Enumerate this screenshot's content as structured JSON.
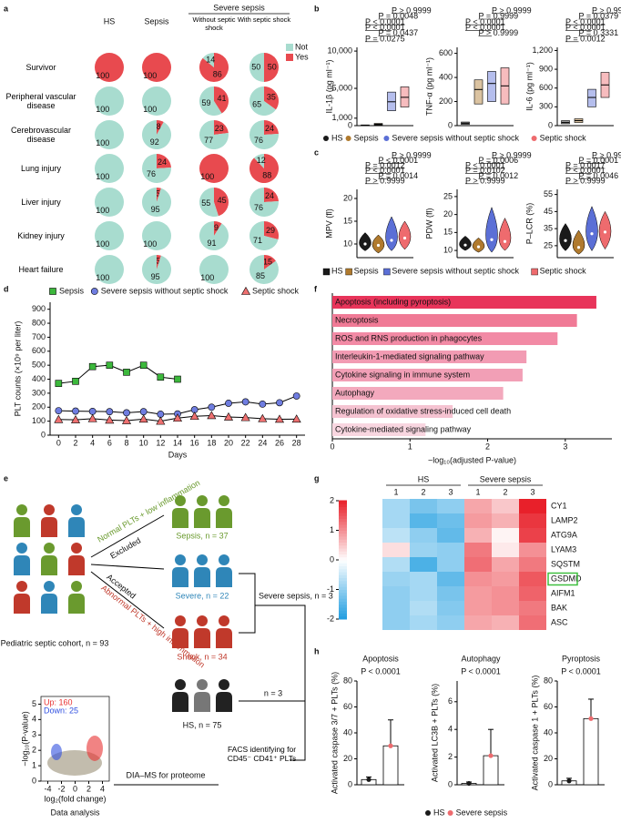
{
  "panel_labels": [
    "a",
    "b",
    "c",
    "d",
    "e",
    "f",
    "g",
    "h"
  ],
  "chart_data": [
    {
      "type": "pie-grid",
      "column_group": "Severe sepsis",
      "columns": [
        "HS",
        "Sepsis",
        "Without septic shock",
        "With septic shock"
      ],
      "rows": [
        "Survivor",
        "Peripheral vascular disease",
        "Cerebrovascular disease",
        "Lung injury",
        "Liver injury",
        "Kidney injury",
        "Heart failure"
      ],
      "series": [
        {
          "name": "Not",
          "color": "#a8dccf"
        },
        {
          "name": "Yes",
          "color": "#e84a4f"
        }
      ],
      "cells": [
        [
          [
            0,
            100
          ],
          [
            0,
            100
          ],
          [
            14,
            86
          ],
          [
            50,
            50
          ]
        ],
        [
          [
            100,
            0
          ],
          [
            100,
            0
          ],
          [
            59,
            41
          ],
          [
            65,
            35
          ]
        ],
        [
          [
            100,
            0
          ],
          [
            92,
            8
          ],
          [
            77,
            23
          ],
          [
            76,
            24
          ]
        ],
        [
          [
            100,
            0
          ],
          [
            76,
            24
          ],
          [
            0,
            100
          ],
          [
            12,
            88
          ]
        ],
        [
          [
            100,
            0
          ],
          [
            95,
            5
          ],
          [
            55,
            45
          ],
          [
            76,
            24
          ]
        ],
        [
          [
            100,
            0
          ],
          [
            100,
            0
          ],
          [
            91,
            9
          ],
          [
            71,
            29
          ]
        ],
        [
          [
            100,
            0
          ],
          [
            95,
            5
          ],
          [
            100,
            0
          ],
          [
            85,
            15
          ]
        ]
      ]
    },
    {
      "type": "box-panel",
      "legend": {
        "names": [
          "HS",
          "Sepsis",
          "Severe sepsis without septic shock",
          "Septic shock"
        ],
        "colors": [
          "#1a1a1a",
          "#b07a2e",
          "#5b6fd6",
          "#ee6b6e"
        ]
      },
      "panels": [
        {
          "ylabel": "IL-1β (pg ml⁻¹)",
          "ylim": [
            0,
            10500
          ],
          "yticks": [
            0,
            {
              "value": 1000,
              "label": "1,000"
            },
            {
              "value": 5000,
              "label": "5,000"
            },
            {
              "value": 10000,
              "label": "10,000"
            }
          ],
          "groups": [
            [
              30,
              60,
              100
            ],
            [
              80,
              180,
              300
            ],
            [
              2000,
              3200,
              4500
            ],
            [
              2500,
              3800,
              5200
            ]
          ],
          "p_values": [
            "P > 0.9999",
            "P = 0.0048",
            "P < 0.0001",
            "P < 0.0001",
            "P = 0.0437",
            "P = 0.0275"
          ]
        },
        {
          "ylabel": "TNF-α (pg ml⁻¹)",
          "ylim": [
            0,
            650
          ],
          "yticks": [
            0,
            200,
            400,
            600
          ],
          "groups": [
            [
              10,
              20,
              30
            ],
            [
              180,
              300,
              380
            ],
            [
              200,
              350,
              450
            ],
            [
              180,
              330,
              480
            ]
          ],
          "p_values": [
            "P > 0.9999",
            "P = 0.9999",
            "P < 0.0001",
            "P < 0.0001",
            "P > 0.9999"
          ]
        },
        {
          "ylabel": "IL-6 (pg ml⁻¹)",
          "ylim": [
            0,
            1250
          ],
          "yticks": [
            0,
            300,
            600,
            900,
            {
              "value": 1200,
              "label": "1,200"
            }
          ],
          "groups": [
            [
              30,
              50,
              80
            ],
            [
              50,
              80,
              110
            ],
            [
              300,
              450,
              580
            ],
            [
              450,
              650,
              850
            ]
          ],
          "p_values": [
            "P > 0.9999",
            "P = 0.0379",
            "P < 0.0001",
            "P < 0.0001",
            "P = 0.3331",
            "P = 0.0012"
          ]
        }
      ]
    },
    {
      "type": "violin-panel",
      "legend": {
        "names": [
          "HS",
          "Sepsis",
          "Severe sepsis without septic shock",
          "Septic shock"
        ],
        "colors": [
          "#1a1a1a",
          "#b07a2e",
          "#5b6fd6",
          "#ee6b6e"
        ]
      },
      "panels": [
        {
          "ylabel": "MPV (fl)",
          "ylim": [
            7,
            22
          ],
          "yticks": [
            10,
            15,
            20
          ],
          "groups": [
            [
              8.5,
              10,
              12.5
            ],
            [
              8,
              9.7,
              12
            ],
            [
              8.5,
              10.8,
              16
            ],
            [
              8.8,
              11.3,
              15
            ]
          ],
          "p_values": [
            "P > 0.9999",
            "P < 0.0001",
            "P = 0.0012",
            "P < 0.0001",
            "P = 0.0014",
            "P > 0.9999"
          ]
        },
        {
          "ylabel": "PDW (fl)",
          "ylim": [
            8,
            27
          ],
          "yticks": [
            10,
            15,
            20,
            25
          ],
          "groups": [
            [
              10,
              11.5,
              14
            ],
            [
              9.5,
              11,
              13.5
            ],
            [
              9.5,
              13,
              22
            ],
            [
              10,
              12.5,
              19
            ]
          ],
          "p_values": [
            "P > 0.9999",
            "P = 0.0006",
            "P < 0.0001",
            "P = 0.0102",
            "P = 0.0012",
            "P > 0.9999"
          ]
        },
        {
          "ylabel": "P–LCR (%)",
          "ylim": [
            18,
            58
          ],
          "yticks": [
            25,
            35,
            45,
            55
          ],
          "groups": [
            [
              22,
              28,
              38
            ],
            [
              20,
              24,
              34
            ],
            [
              22,
              32,
              48
            ],
            [
              23,
              33,
              45
            ]
          ],
          "p_values": [
            "P > 0.9999",
            "P = 0.0001",
            "P = 0.0017",
            "P < 0.0001",
            "P = 0.0046",
            "P > 0.9999"
          ]
        }
      ]
    },
    {
      "type": "line",
      "xlabel": "Days",
      "ylabel": "PLT counts (×10⁹ per liter)",
      "x": [
        0,
        2,
        4,
        6,
        8,
        10,
        12,
        14,
        16,
        18,
        20,
        22,
        24,
        26,
        28
      ],
      "xlim": [
        -1,
        29
      ],
      "xticks": [
        0,
        2,
        4,
        6,
        8,
        10,
        12,
        14,
        16,
        18,
        20,
        22,
        24,
        26,
        28
      ],
      "ylim": [
        0,
        950
      ],
      "yticks": [
        0,
        100,
        200,
        300,
        400,
        500,
        600,
        700,
        800,
        900
      ],
      "line_color": "#000000",
      "series": [
        {
          "name": "Sepsis",
          "color": "#3cb83c",
          "marker": "square",
          "values": [
            370,
            385,
            490,
            500,
            450,
            500,
            415,
            400,
            null,
            null,
            null,
            null,
            null,
            null,
            null
          ]
        },
        {
          "name": "Severe sepsis without septic shock",
          "color": "#6f7de0",
          "marker": "circle",
          "values": [
            175,
            172,
            170,
            168,
            160,
            168,
            150,
            152,
            182,
            200,
            228,
            238,
            222,
            232,
            280
          ]
        },
        {
          "name": "Septic shock",
          "color": "#ee7070",
          "marker": "triangle",
          "values": [
            112,
            110,
            118,
            108,
            104,
            115,
            100,
            122,
            135,
            140,
            130,
            126,
            118,
            114,
            115
          ]
        }
      ]
    },
    {
      "type": "hbar",
      "xlabel": "−log₁₀(adjusted P-value)",
      "xlim": [
        0,
        3.6
      ],
      "xticks": [
        0,
        1,
        2,
        3
      ],
      "categories": [
        "Apoptosis (including pyroptosis)",
        "Necroptosis",
        "ROS and RNS production in phagocytes",
        "Interleukin-1-mediated signaling pathway",
        "Cytokine signaling in immune system",
        "Autophagy",
        "Regulation of oxidative stress-induced cell death",
        "Cytokine-mediated signaling pathway"
      ],
      "values": [
        3.4,
        3.15,
        2.9,
        2.5,
        2.45,
        2.2,
        1.55,
        1.2
      ],
      "colors": [
        "#e8345a",
        "#f07a96",
        "#f28aa5",
        "#f29bb3",
        "#f29fb6",
        "#f3a9bd",
        "#f5c3d1",
        "#f8d6e0"
      ]
    },
    {
      "type": "heatmap",
      "groups": [
        "HS",
        "Severe sepsis"
      ],
      "columns": [
        "1",
        "2",
        "3",
        "1",
        "2",
        "3"
      ],
      "rows": [
        "CY1",
        "LAMP2",
        "ATG9A",
        "LYAM3",
        "SQSTM",
        "GSDMD",
        "AIFM1",
        "BAK",
        "ASC"
      ],
      "values": [
        [
          -0.8,
          -1.2,
          -1.0,
          0.8,
          0.5,
          2.0
        ],
        [
          -0.8,
          -1.5,
          -1.3,
          0.9,
          0.7,
          1.8
        ],
        [
          -0.6,
          -1.0,
          -1.4,
          0.7,
          0.1,
          1.7
        ],
        [
          0.3,
          -0.9,
          -1.0,
          1.2,
          0.2,
          1.0
        ],
        [
          -0.7,
          -1.6,
          -1.0,
          1.3,
          0.8,
          1.2
        ],
        [
          -0.9,
          -0.8,
          -1.4,
          1.0,
          0.9,
          1.5
        ],
        [
          -1.0,
          -0.8,
          -1.2,
          0.9,
          1.0,
          1.4
        ],
        [
          -1.0,
          -0.7,
          -1.1,
          0.9,
          1.0,
          1.2
        ],
        [
          -1.0,
          -0.8,
          -1.0,
          0.8,
          0.7,
          1.3
        ]
      ],
      "zlim": [
        -2,
        2
      ],
      "zticks": [
        -2,
        -1,
        0,
        1,
        2
      ],
      "colors": [
        "#1f9de0",
        "#ffffff",
        "#e8202a"
      ],
      "highlighted_rows": [
        5
      ],
      "highlight_color": "#3fbf3f"
    },
    {
      "type": "bar-dot-panel",
      "legend": {
        "names": [
          "HS",
          "Severe sepsis"
        ],
        "colors": [
          "#1a1a1a",
          "#ee6b6e"
        ]
      },
      "panels": [
        {
          "title": "Apoptosis",
          "p_value": "P < 0.0001",
          "ylabel": "Activated caspase 3/7 + PLTs (%)",
          "ylim": [
            0,
            80
          ],
          "yticks": [
            0,
            20,
            40,
            60,
            80
          ],
          "values": [
            4,
            30
          ],
          "errors": [
            2,
            20
          ]
        },
        {
          "title": "Autophagy",
          "p_value": "P < 0.0001",
          "ylabel": "Activated LC3B + PLTs (%)",
          "ylim": [
            0,
            7.5
          ],
          "yticks": [
            0,
            2,
            4,
            6
          ],
          "values": [
            0.1,
            2.1
          ],
          "errors": [
            0.1,
            1.9
          ]
        },
        {
          "title": "Pyroptosis",
          "p_value": "P < 0.0001",
          "ylabel": "Activated caspase 1 + PLTs (%)",
          "ylim": [
            0,
            80
          ],
          "yticks": [
            0,
            20,
            40,
            60,
            80
          ],
          "values": [
            3,
            51
          ],
          "errors": [
            2,
            15
          ]
        }
      ]
    },
    {
      "type": "volcano",
      "xlabel": "log₂(fold change)",
      "ylabel": "−log₁₀(P-value)",
      "xlim": [
        -5,
        5
      ],
      "xticks": [
        -4,
        -2,
        0,
        2,
        4
      ],
      "ylim": [
        0,
        5.5
      ],
      "yticks": [
        0,
        1,
        2,
        3,
        4,
        5
      ],
      "annotations": [
        {
          "text": "Up: 160",
          "color": "#e83030"
        },
        {
          "text": "Down: 25",
          "color": "#3050e0"
        }
      ],
      "caption": "Data analysis"
    }
  ],
  "diagram": {
    "cohort": "Pediatric septic cohort, n = 93",
    "normal": "Normal PLTs + low inflammation",
    "excluded": "Excluded",
    "accepted": "Accepted",
    "abnormal": "Abnormal PLTs + high inflammation",
    "sepsis": "Sepsis, n = 37",
    "severe": "Severe, n = 22",
    "shock": "Shock, n = 34",
    "hs": "HS, n = 75",
    "severe_sepsis": "Severe sepsis, n = 3",
    "hs_n": "n = 3",
    "facs": "FACS identifying for CD45⁻ CD41⁺ PLTs",
    "dia": "DIA–MS for proteome"
  }
}
